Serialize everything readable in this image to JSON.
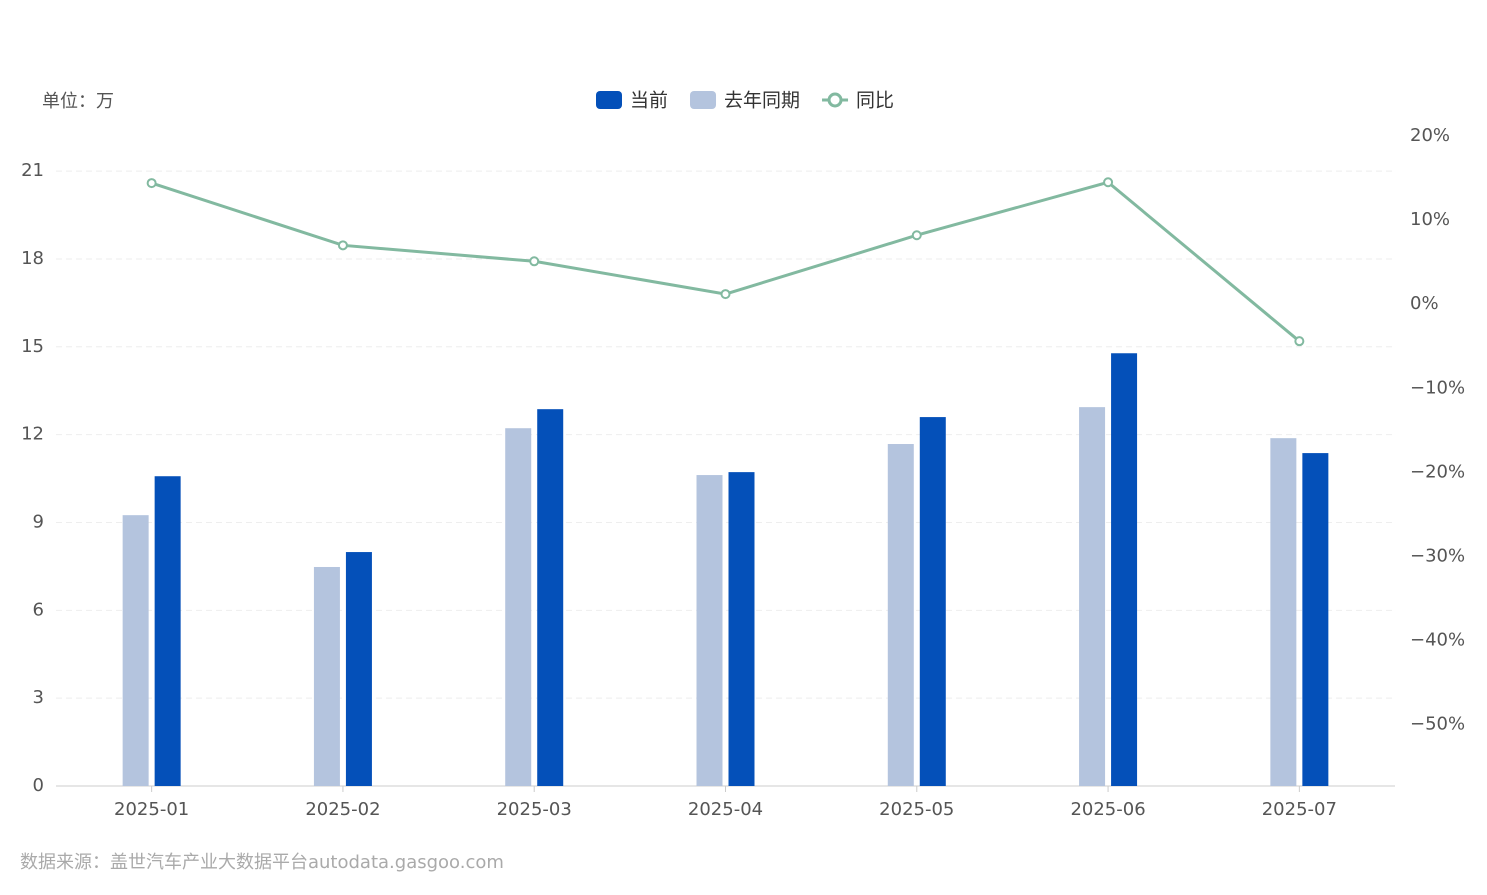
{
  "chart_data": {
    "type": "bar",
    "unit_label": "单位：万",
    "source": "数据来源：盖世汽车产业大数据平台autodata.gasgoo.com",
    "categories": [
      "2025-01",
      "2025-02",
      "2025-03",
      "2025-04",
      "2025-05",
      "2025-06",
      "2025-07"
    ],
    "series": [
      {
        "name": "去年同期",
        "color": "#b4c4de",
        "values": [
          9.25,
          7.48,
          12.22,
          10.62,
          11.68,
          12.94,
          11.88
        ]
      },
      {
        "name": "当前",
        "color": "#0450b9",
        "values": [
          10.58,
          7.99,
          12.87,
          10.72,
          12.6,
          14.78,
          11.37
        ]
      },
      {
        "name": "同比",
        "type": "line",
        "axis": "y2",
        "color": "#82b9a0",
        "values": [
          14.4,
          7.0,
          5.1,
          1.2,
          8.2,
          14.5,
          -4.4
        ]
      }
    ],
    "legend_order": [
      1,
      0,
      2
    ],
    "ylim": [
      0,
      22.2
    ],
    "yticks": [
      0,
      3,
      6,
      9,
      12,
      15,
      18,
      21
    ],
    "y2lim": [
      -57.3,
      20
    ],
    "y2ticks": [
      {
        "value": 20,
        "label": "20%"
      },
      {
        "value": 10,
        "label": "10%"
      },
      {
        "value": 0,
        "label": "0%"
      },
      {
        "value": -10,
        "label": "−10%"
      },
      {
        "value": -20,
        "label": "−20%"
      },
      {
        "value": -30,
        "label": "−30%"
      },
      {
        "value": -40,
        "label": "−40%"
      },
      {
        "value": -50,
        "label": "−50%"
      }
    ],
    "grid": true
  }
}
